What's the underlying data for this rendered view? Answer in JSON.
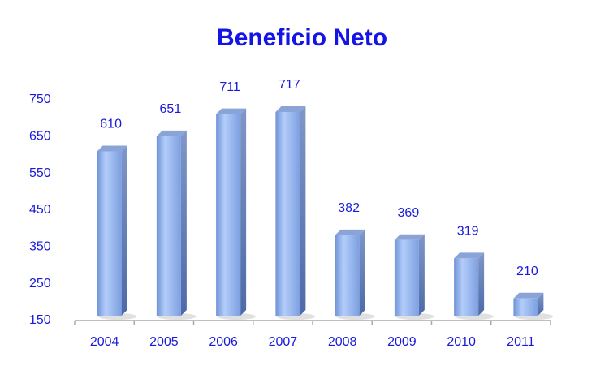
{
  "chart_data": {
    "type": "bar3d",
    "title": "Beneficio Neto",
    "categories": [
      "2004",
      "2005",
      "2006",
      "2007",
      "2008",
      "2009",
      "2010",
      "2011"
    ],
    "values": [
      610,
      651,
      711,
      717,
      382,
      369,
      319,
      210
    ],
    "color": "#8fb0ee",
    "ylim": [
      150,
      750
    ],
    "yticks": [
      150,
      250,
      350,
      450,
      550,
      650,
      750
    ],
    "grid": false
  }
}
